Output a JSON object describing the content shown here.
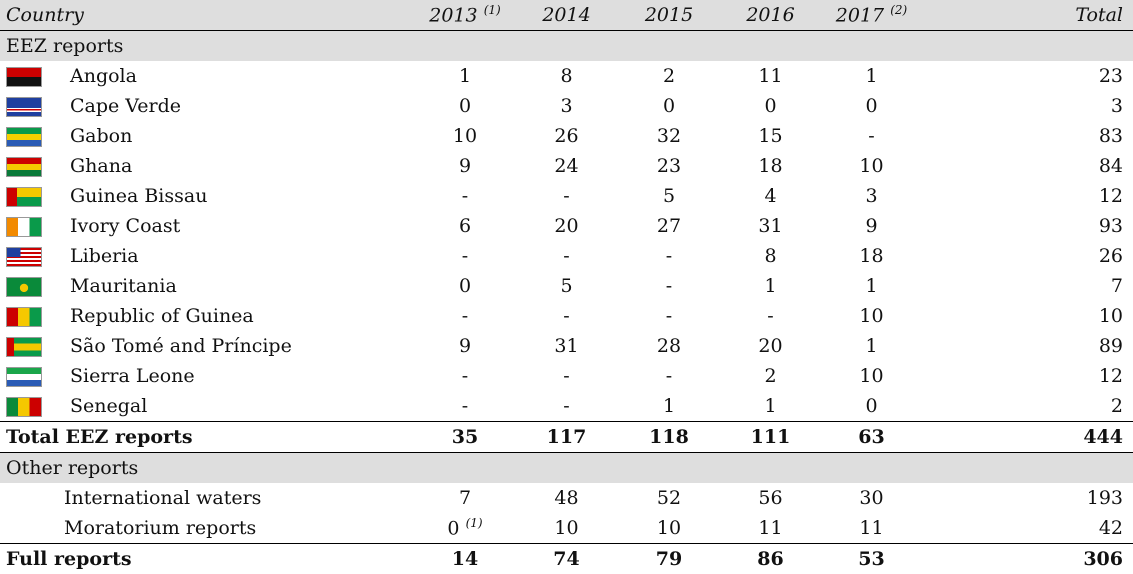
{
  "header": {
    "columns": [
      {
        "label": "Country"
      },
      {
        "label": "2013",
        "note": "(1)"
      },
      {
        "label": "2014"
      },
      {
        "label": "2015"
      },
      {
        "label": "2016"
      },
      {
        "label": "2017",
        "note": "(2)"
      },
      {
        "label": "Total"
      }
    ]
  },
  "eez": {
    "title": "EEZ reports",
    "rows": [
      {
        "country": "Angola",
        "values": [
          1,
          8,
          2,
          11,
          1,
          23
        ]
      },
      {
        "country": "Cape Verde",
        "values": [
          0,
          3,
          0,
          0,
          0,
          3
        ]
      },
      {
        "country": "Gabon",
        "values": [
          10,
          26,
          32,
          15,
          "-",
          83
        ]
      },
      {
        "country": "Ghana",
        "values": [
          9,
          24,
          23,
          18,
          10,
          84
        ]
      },
      {
        "country": "Guinea Bissau",
        "values": [
          "-",
          "-",
          5,
          4,
          3,
          12
        ]
      },
      {
        "country": "Ivory Coast",
        "values": [
          6,
          20,
          27,
          31,
          9,
          93
        ]
      },
      {
        "country": "Liberia",
        "values": [
          "-",
          "-",
          "-",
          8,
          18,
          26
        ]
      },
      {
        "country": "Mauritania",
        "values": [
          0,
          5,
          "-",
          1,
          1,
          7
        ]
      },
      {
        "country": "Republic of Guinea",
        "values": [
          "-",
          "-",
          "-",
          "-",
          10,
          10
        ]
      },
      {
        "country": "São Tomé and Príncipe",
        "values": [
          9,
          31,
          28,
          20,
          1,
          89
        ]
      },
      {
        "country": "Sierra Leone",
        "values": [
          "-",
          "-",
          "-",
          2,
          10,
          12
        ]
      },
      {
        "country": "Senegal",
        "values": [
          "-",
          "-",
          1,
          1,
          0,
          2
        ]
      }
    ],
    "total": {
      "label": "Total EEZ reports",
      "values": [
        35,
        117,
        118,
        111,
        63,
        444
      ]
    }
  },
  "other": {
    "title": "Other reports",
    "rows": [
      {
        "country": "International waters",
        "values": [
          7,
          48,
          52,
          56,
          30,
          193
        ]
      },
      {
        "country": "Moratorium reports",
        "values": [
          0,
          10,
          10,
          11,
          11,
          42
        ],
        "notes": {
          "0": "(1)"
        }
      }
    ]
  },
  "full": {
    "label": "Full reports",
    "values": [
      14,
      74,
      79,
      86,
      53,
      306
    ]
  }
}
